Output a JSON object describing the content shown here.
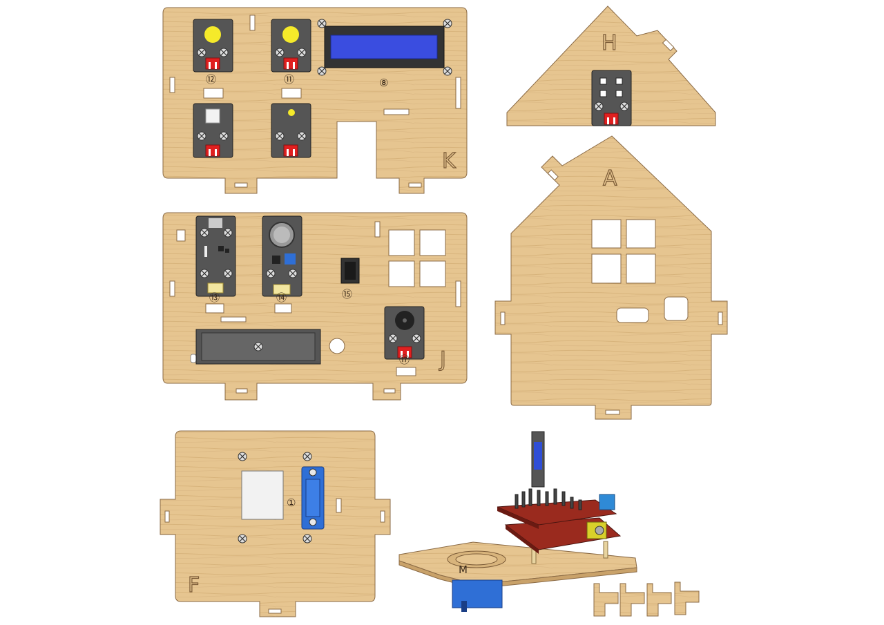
{
  "panels": {
    "K": {
      "letter": "K",
      "numbers": [
        "⑫",
        "⑪",
        "⑧"
      ]
    },
    "J": {
      "letter": "J",
      "numbers": [
        "⑬",
        "⑭",
        "⑮",
        "⑰"
      ]
    },
    "H": {
      "letter": "H"
    },
    "A": {
      "letter": "A"
    },
    "F": {
      "letter": "F",
      "numbers": [
        "①"
      ]
    },
    "M": {
      "letter": "M"
    }
  },
  "colors": {
    "wood": "#e6c590",
    "wood_grain": "#d4ad73",
    "module": "#555555",
    "lcd_screen": "#3a4de0",
    "button_yellow": "#f5ea2a",
    "connector_red": "#e02020",
    "servo_blue": "#2f6fd6",
    "pcb_red": "#9a2a1e"
  }
}
